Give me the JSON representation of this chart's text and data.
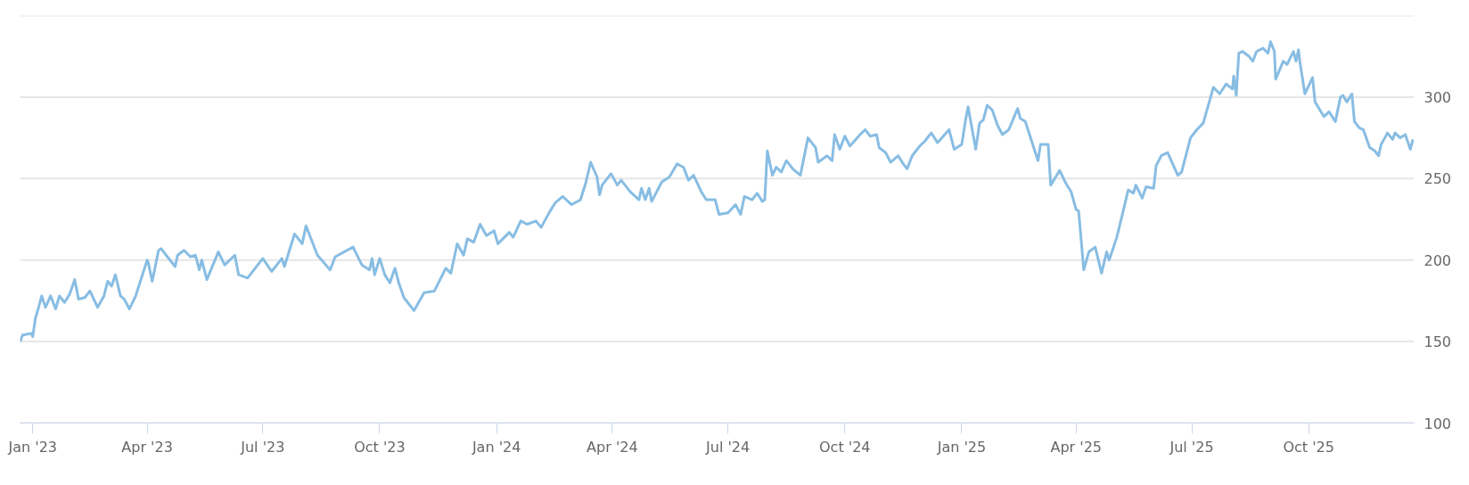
{
  "chart_data": {
    "type": "line",
    "xlim": [
      "2022-12-22",
      "2025-12-23"
    ],
    "ylim": [
      100,
      350
    ],
    "xticks": [
      {
        "value": "2023-01-01",
        "label": "Jan '23"
      },
      {
        "value": "2023-04-01",
        "label": "Apr '23"
      },
      {
        "value": "2023-07-01",
        "label": "Jul '23"
      },
      {
        "value": "2023-10-01",
        "label": "Oct '23"
      },
      {
        "value": "2024-01-01",
        "label": "Jan '24"
      },
      {
        "value": "2024-04-01",
        "label": "Apr '24"
      },
      {
        "value": "2024-07-01",
        "label": "Jul '24"
      },
      {
        "value": "2024-10-01",
        "label": "Oct '24"
      },
      {
        "value": "2025-01-01",
        "label": "Jan '25"
      },
      {
        "value": "2025-04-01",
        "label": "Apr '25"
      },
      {
        "value": "2025-07-01",
        "label": "Jul '25"
      },
      {
        "value": "2025-10-01",
        "label": "Oct '25"
      }
    ],
    "yticks": [
      100,
      150,
      200,
      250,
      300,
      {
        "value": 350,
        "label": null
      }
    ],
    "grid": "y",
    "marker": "none",
    "line_style": "solid",
    "x": [
      "2022-12-22",
      "2022-12-24",
      "2022-12-31",
      "2023-01-01",
      "2023-01-03",
      "2023-01-06",
      "2023-01-08",
      "2023-01-11",
      "2023-01-15",
      "2023-01-19",
      "2023-01-22",
      "2023-01-26",
      "2023-01-30",
      "2023-02-03",
      "2023-02-06",
      "2023-02-11",
      "2023-02-15",
      "2023-02-21",
      "2023-02-26",
      "2023-03-01",
      "2023-03-04",
      "2023-03-07",
      "2023-03-11",
      "2023-03-14",
      "2023-03-18",
      "2023-03-23",
      "2023-04-01",
      "2023-04-02",
      "2023-04-05",
      "2023-04-10",
      "2023-04-12",
      "2023-04-16",
      "2023-04-23",
      "2023-04-25",
      "2023-04-30",
      "2023-05-05",
      "2023-05-09",
      "2023-05-12",
      "2023-05-14",
      "2023-05-18",
      "2023-05-27",
      "2023-06-01",
      "2023-06-09",
      "2023-06-12",
      "2023-06-19",
      "2023-07-01",
      "2023-07-08",
      "2023-07-16",
      "2023-07-18",
      "2023-07-26",
      "2023-08-01",
      "2023-08-04",
      "2023-08-08",
      "2023-08-13",
      "2023-08-23",
      "2023-08-27",
      "2023-09-10",
      "2023-09-17",
      "2023-09-23",
      "2023-09-25",
      "2023-09-27",
      "2023-10-01",
      "2023-10-05",
      "2023-10-09",
      "2023-10-13",
      "2023-10-16",
      "2023-10-20",
      "2023-10-28",
      "2023-11-05",
      "2023-11-13",
      "2023-11-22",
      "2023-11-26",
      "2023-12-01",
      "2023-12-06",
      "2023-12-09",
      "2023-12-14",
      "2023-12-19",
      "2023-12-24",
      "2023-12-30",
      "2024-01-02",
      "2024-01-11",
      "2024-01-14",
      "2024-01-20",
      "2024-01-25",
      "2024-02-01",
      "2024-02-05",
      "2024-02-12",
      "2024-02-16",
      "2024-02-22",
      "2024-02-29",
      "2024-03-07",
      "2024-03-11",
      "2024-03-15",
      "2024-03-20",
      "2024-03-22",
      "2024-03-24",
      "2024-03-31",
      "2024-04-05",
      "2024-04-08",
      "2024-04-15",
      "2024-04-22",
      "2024-04-24",
      "2024-04-27",
      "2024-04-30",
      "2024-05-02",
      "2024-05-10",
      "2024-05-16",
      "2024-05-22",
      "2024-05-27",
      "2024-05-31",
      "2024-06-04",
      "2024-06-10",
      "2024-06-14",
      "2024-06-21",
      "2024-06-24",
      "2024-07-01",
      "2024-07-07",
      "2024-07-11",
      "2024-07-14",
      "2024-07-20",
      "2024-07-24",
      "2024-07-28",
      "2024-07-30",
      "2024-08-01",
      "2024-08-05",
      "2024-08-08",
      "2024-08-12",
      "2024-08-16",
      "2024-08-21",
      "2024-08-27",
      "2024-09-02",
      "2024-09-08",
      "2024-09-10",
      "2024-09-17",
      "2024-09-21",
      "2024-09-23",
      "2024-09-27",
      "2024-10-01",
      "2024-10-05",
      "2024-10-13",
      "2024-10-17",
      "2024-10-21",
      "2024-10-26",
      "2024-10-28",
      "2024-11-02",
      "2024-11-06",
      "2024-11-12",
      "2024-11-16",
      "2024-11-19",
      "2024-11-23",
      "2024-11-29",
      "2024-12-03",
      "2024-12-08",
      "2024-12-13",
      "2024-12-22",
      "2024-12-26",
      "2025-01-01",
      "2025-01-04",
      "2025-01-06",
      "2025-01-12",
      "2025-01-15",
      "2025-01-18",
      "2025-01-21",
      "2025-01-25",
      "2025-01-29",
      "2025-02-02",
      "2025-02-07",
      "2025-02-14",
      "2025-02-16",
      "2025-02-20",
      "2025-02-25",
      "2025-03-02",
      "2025-03-04",
      "2025-03-10",
      "2025-03-12",
      "2025-03-19",
      "2025-03-24",
      "2025-03-28",
      "2025-04-01",
      "2025-04-03",
      "2025-04-07",
      "2025-04-11",
      "2025-04-16",
      "2025-04-21",
      "2025-04-25",
      "2025-04-27",
      "2025-05-03",
      "2025-05-08",
      "2025-05-12",
      "2025-05-16",
      "2025-05-18",
      "2025-05-23",
      "2025-05-26",
      "2025-06-01",
      "2025-06-03",
      "2025-06-07",
      "2025-06-12",
      "2025-06-20",
      "2025-06-23",
      "2025-06-30",
      "2025-07-05",
      "2025-07-10",
      "2025-07-14",
      "2025-07-18",
      "2025-07-23",
      "2025-07-28",
      "2025-08-02",
      "2025-08-03",
      "2025-08-05",
      "2025-08-07",
      "2025-08-10",
      "2025-08-15",
      "2025-08-18",
      "2025-08-21",
      "2025-08-26",
      "2025-08-30",
      "2025-09-01",
      "2025-09-04",
      "2025-09-05",
      "2025-09-11",
      "2025-09-14",
      "2025-09-19",
      "2025-09-21",
      "2025-09-23",
      "2025-09-24",
      "2025-09-28",
      "2025-10-01",
      "2025-10-04",
      "2025-10-06",
      "2025-10-13",
      "2025-10-17",
      "2025-10-22",
      "2025-10-26",
      "2025-10-28",
      "2025-10-31",
      "2025-11-04",
      "2025-11-06",
      "2025-11-10",
      "2025-11-13",
      "2025-11-18",
      "2025-11-22",
      "2025-11-25",
      "2025-11-27",
      "2025-12-02",
      "2025-12-06",
      "2025-12-08",
      "2025-12-12",
      "2025-12-16",
      "2025-12-20",
      "2025-12-22"
    ],
    "series": [
      {
        "color": "#88bde3",
        "values": [
          150,
          154,
          155,
          153,
          164,
          172,
          178,
          171,
          178,
          170,
          178,
          174,
          179,
          188,
          176,
          177,
          181,
          171,
          178,
          187,
          184,
          191,
          178,
          176,
          170,
          178,
          200,
          198,
          187,
          206,
          207,
          203,
          196,
          203,
          206,
          202,
          203,
          194,
          200,
          188,
          205,
          197,
          203,
          191,
          189,
          201,
          193,
          201,
          196,
          216,
          210,
          221,
          213,
          203,
          194,
          202,
          208,
          197,
          194,
          201,
          191,
          201,
          191,
          186,
          195,
          186,
          177,
          169,
          180,
          181,
          195,
          192,
          210,
          203,
          213,
          211,
          222,
          215,
          218,
          210,
          217,
          214,
          224,
          222,
          224,
          220,
          230,
          235,
          239,
          234,
          237,
          247,
          260,
          251,
          240,
          246,
          253,
          246,
          249,
          242,
          237,
          244,
          237,
          244,
          236,
          248,
          251,
          259,
          257,
          249,
          252,
          242,
          237,
          237,
          228,
          229,
          234,
          228,
          239,
          237,
          241,
          236,
          237,
          267,
          252,
          257,
          254,
          261,
          256,
          252,
          275,
          269,
          260,
          264,
          261,
          277,
          268,
          276,
          270,
          277,
          280,
          276,
          277,
          269,
          266,
          260,
          264,
          259,
          256,
          264,
          270,
          273,
          278,
          272,
          280,
          268,
          271,
          286,
          294,
          268,
          284,
          286,
          295,
          292,
          283,
          277,
          280,
          293,
          287,
          285,
          273,
          261,
          271,
          271,
          246,
          255,
          247,
          242,
          231,
          230,
          194,
          205,
          208,
          192,
          205,
          200,
          214,
          230,
          243,
          241,
          246,
          238,
          245,
          244,
          258,
          264,
          266,
          252,
          254,
          275,
          280,
          284,
          295,
          306,
          302,
          308,
          305,
          313,
          301,
          327,
          328,
          325,
          322,
          328,
          330,
          327,
          334,
          328,
          311,
          322,
          320,
          328,
          322,
          329,
          322,
          302,
          307,
          312,
          297,
          288,
          291,
          285,
          300,
          301,
          297,
          302,
          285,
          281,
          280,
          269,
          267,
          264,
          271,
          278,
          274,
          278,
          275,
          277,
          268,
          274
        ]
      }
    ]
  }
}
